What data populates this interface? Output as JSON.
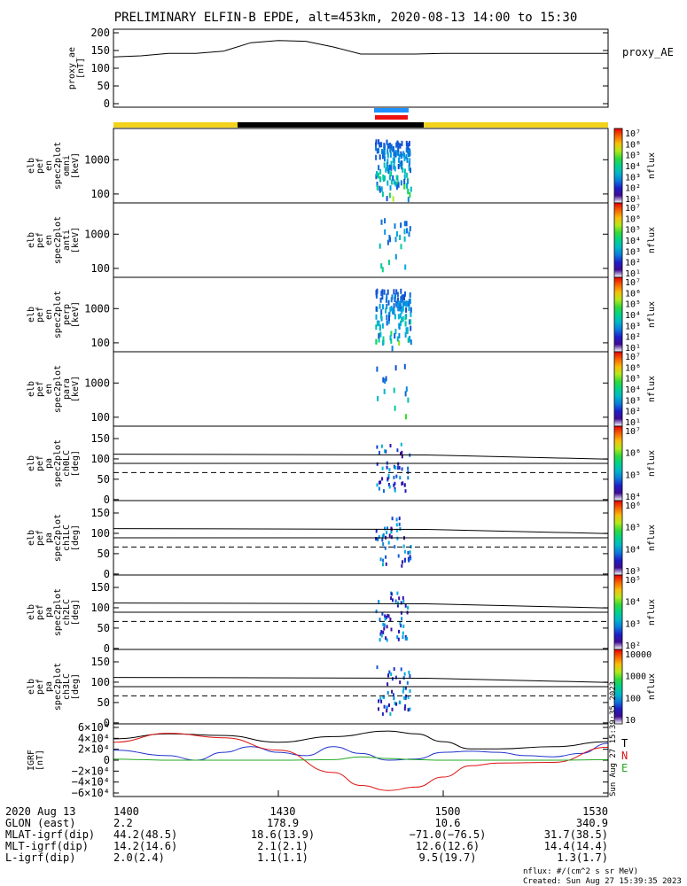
{
  "title": "PRELIMINARY ELFIN-B EPDE, alt=453km, 2020-08-13 14:00 to 15:30",
  "colors": {
    "yellow_bar": "#f2d21c",
    "black_bar": "#000000",
    "blue_marker": "#1e90ff",
    "red_marker": "#ee1111",
    "curve_black": "#000000",
    "curve_blue": "#2233cc",
    "curve_red": "#dd1111",
    "curve_green": "#22aa22"
  },
  "chart_data": [
    {
      "type": "line",
      "panel": "proxy_ae",
      "ylabel": [
        "proxy_ae",
        "[nT]"
      ],
      "yticks": [
        "200",
        "150",
        "100",
        "50",
        "0"
      ],
      "ylim": [
        0,
        200
      ],
      "xlim": [
        0,
        90
      ],
      "legend": "proxy_AE",
      "series": [
        {
          "name": "proxy_AE",
          "x": [
            0,
            5,
            10,
            15,
            20,
            25,
            30,
            35,
            40,
            45,
            50,
            55,
            60,
            65,
            70,
            75,
            80,
            85,
            90
          ],
          "values": [
            132,
            135,
            142,
            142,
            148,
            172,
            178,
            176,
            160,
            140,
            140,
            140,
            142,
            142,
            142,
            142,
            142,
            142,
            142
          ]
        }
      ]
    },
    {
      "type": "heatmap",
      "panel": "omni",
      "ylabel": [
        "elb",
        "pef",
        "en",
        "spec2plot",
        "omni",
        "[keV]"
      ],
      "yticks": [
        "1000",
        "100"
      ],
      "colorbar": {
        "label": "nflux",
        "ticks": [
          "10⁷",
          "10⁶",
          "10⁵",
          "10⁴",
          "10³",
          "10²",
          "10¹"
        ]
      }
    },
    {
      "type": "heatmap",
      "panel": "anti",
      "ylabel": [
        "elb",
        "pef",
        "en",
        "spec2plot",
        "anti",
        "[keV]"
      ],
      "yticks": [
        "1000",
        "100"
      ],
      "colorbar": {
        "label": "nflux",
        "ticks": [
          "10⁷",
          "10⁶",
          "10⁵",
          "10⁴",
          "10³",
          "10²",
          "10¹"
        ]
      }
    },
    {
      "type": "heatmap",
      "panel": "perp",
      "ylabel": [
        "elb",
        "pef",
        "en",
        "spec2plot",
        "perp",
        "[keV]"
      ],
      "yticks": [
        "1000",
        "100"
      ],
      "colorbar": {
        "label": "nflux",
        "ticks": [
          "10⁷",
          "10⁶",
          "10⁵",
          "10⁴",
          "10³",
          "10²",
          "10¹"
        ]
      }
    },
    {
      "type": "heatmap",
      "panel": "para",
      "ylabel": [
        "elb",
        "pef",
        "en",
        "spec2plot",
        "para",
        "[keV]"
      ],
      "yticks": [
        "1000",
        "100"
      ],
      "colorbar": {
        "label": "nflux",
        "ticks": [
          "10⁷",
          "10⁶",
          "10⁵",
          "10⁴",
          "10³",
          "10²",
          "10¹"
        ]
      }
    },
    {
      "type": "heatmap",
      "panel": "ch0LC",
      "ylabel": [
        "elb",
        "pef",
        "pa",
        "spec2plot",
        "ch0LC",
        "[deg]"
      ],
      "yticks": [
        "150",
        "100",
        "50",
        "0"
      ],
      "colorbar": {
        "label": "nflux",
        "ticks": [
          "10⁷",
          "10⁶",
          "10⁵",
          "10⁴"
        ]
      }
    },
    {
      "type": "heatmap",
      "panel": "ch1LC",
      "ylabel": [
        "elb",
        "pef",
        "pa",
        "spec2plot",
        "ch1LC",
        "[deg]"
      ],
      "yticks": [
        "150",
        "100",
        "50",
        "0"
      ],
      "colorbar": {
        "label": "nflux",
        "ticks": [
          "10⁶",
          "10⁵",
          "10⁴",
          "10³"
        ]
      }
    },
    {
      "type": "heatmap",
      "panel": "ch2LC",
      "ylabel": [
        "elb",
        "pef",
        "pa",
        "spec2plot",
        "ch2LC",
        "[deg]"
      ],
      "yticks": [
        "150",
        "100",
        "50",
        "0"
      ],
      "colorbar": {
        "label": "nflux",
        "ticks": [
          "10⁵",
          "10⁴",
          "10³",
          "10²"
        ]
      }
    },
    {
      "type": "heatmap",
      "panel": "ch3LC",
      "ylabel": [
        "elb",
        "pef",
        "pa",
        "spec2plot",
        "ch3LC",
        "[deg]"
      ],
      "yticks": [
        "150",
        "100",
        "50",
        "0"
      ],
      "colorbar": {
        "label": "nflux",
        "ticks": [
          "10000",
          "1000",
          "100",
          "10"
        ]
      }
    },
    {
      "type": "line",
      "panel": "IGRF",
      "ylabel": [
        "IGRF",
        "[nT]"
      ],
      "yticks": [
        "6×10⁴",
        "4×10⁴",
        "2×10⁴",
        "0",
        "−2×10⁴",
        "−4×10⁴",
        "−6×10⁴"
      ],
      "ylim": [
        -60000,
        60000
      ],
      "xlim": [
        0,
        90
      ],
      "legend": [
        "T",
        "N",
        "E"
      ],
      "series": [
        {
          "name": "T",
          "x": [
            0,
            10,
            20,
            30,
            40,
            50,
            55,
            60,
            65,
            70,
            80,
            90
          ],
          "values": [
            38000,
            47000,
            44000,
            32000,
            42000,
            52000,
            47000,
            33000,
            20000,
            20000,
            24000,
            33000
          ]
        },
        {
          "name": "N",
          "x": [
            0,
            10,
            15,
            20,
            25,
            30,
            35,
            40,
            45,
            50,
            55,
            60,
            65,
            70,
            75,
            80,
            85,
            90
          ],
          "values": [
            18000,
            8000,
            0,
            14000,
            24000,
            14000,
            8000,
            24000,
            12000,
            0,
            2000,
            14000,
            16000,
            14000,
            8000,
            6000,
            12000,
            30000
          ]
        },
        {
          "name": "",
          "x": [
            0,
            10,
            20,
            30,
            40,
            45,
            50,
            55,
            60,
            65,
            70,
            80,
            90
          ],
          "values": [
            32000,
            48000,
            40000,
            18000,
            -22000,
            -45000,
            -54000,
            -48000,
            -30000,
            -10000,
            -5000,
            -4000,
            23000
          ]
        },
        {
          "name": "E",
          "x": [
            0,
            5,
            10,
            20,
            30,
            40,
            45,
            50,
            55,
            60,
            70,
            80,
            90
          ],
          "values": [
            2000,
            1000,
            0,
            0,
            0,
            1000,
            6000,
            3000,
            1000,
            0,
            0,
            0,
            1000
          ]
        }
      ]
    }
  ],
  "xaxis": {
    "rows": [
      {
        "label": "2020 Aug 13",
        "values": [
          "1400",
          "1430",
          "1500",
          "1530"
        ]
      },
      {
        "label": "GLON (east)",
        "values": [
          "2.2",
          "178.9",
          "10.6",
          "340.9"
        ]
      },
      {
        "label": "MLAT-igrf(dip)",
        "values": [
          "44.2(48.5)",
          "18.6(13.9)",
          "−71.0(−76.5)",
          "31.7(38.5)"
        ]
      },
      {
        "label": "MLT-igrf(dip)",
        "values": [
          "14.2(14.6)",
          "2.1(2.1)",
          "12.6(12.6)",
          "14.4(14.4)"
        ]
      },
      {
        "label": "L-igrf(dip)",
        "values": [
          "2.0(2.4)",
          "1.1(1.1)",
          "9.5(19.7)",
          "1.3(1.7)"
        ]
      }
    ]
  },
  "footer": {
    "units": "nflux: #/(cm^2 s sr MeV)",
    "created": "Created: Sun Aug 27 15:39:35 2023",
    "side_stamp": "Sun Aug 27 15:39:35 2023"
  }
}
